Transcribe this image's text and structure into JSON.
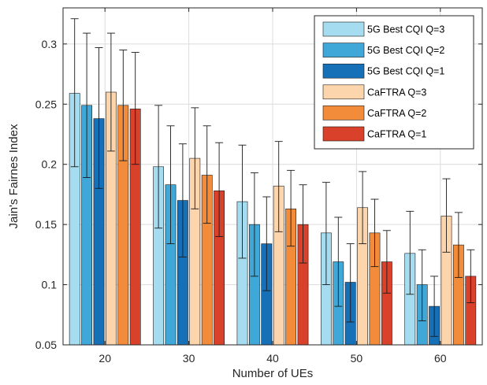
{
  "chart_data": {
    "type": "bar",
    "title": "",
    "xlabel": "Number of UEs",
    "ylabel": "Jain's Fairnes Index",
    "categories": [
      "20",
      "30",
      "40",
      "50",
      "60"
    ],
    "ylim": [
      0.05,
      0.33
    ],
    "yticks": [
      0.05,
      0.1,
      0.15,
      0.2,
      0.25,
      0.3
    ],
    "ytick_labels": [
      "0.05",
      "0.1",
      "0.15",
      "0.2",
      "0.25",
      "0.3"
    ],
    "grid": true,
    "legend_position": "top-right",
    "error_bars": true,
    "series": [
      {
        "name": "5G Best CQI Q=3",
        "color": "#a6dcef",
        "values": [
          0.259,
          0.198,
          0.169,
          0.143,
          0.126
        ],
        "err_low": [
          0.198,
          0.147,
          0.122,
          0.1,
          0.092
        ],
        "err_high": [
          0.321,
          0.249,
          0.216,
          0.185,
          0.161
        ]
      },
      {
        "name": "5G Best CQI Q=2",
        "color": "#3fa8d9",
        "values": [
          0.249,
          0.183,
          0.15,
          0.119,
          0.1
        ],
        "err_low": [
          0.189,
          0.134,
          0.107,
          0.082,
          0.07
        ],
        "err_high": [
          0.309,
          0.232,
          0.193,
          0.156,
          0.129
        ]
      },
      {
        "name": "5G Best CQI Q=1",
        "color": "#1670b8",
        "values": [
          0.238,
          0.17,
          0.134,
          0.102,
          0.082
        ],
        "err_low": [
          0.18,
          0.123,
          0.095,
          0.069,
          0.057
        ],
        "err_high": [
          0.297,
          0.217,
          0.173,
          0.134,
          0.107
        ]
      },
      {
        "name": "CaFTRA Q=3",
        "color": "#fdd5ad",
        "values": [
          0.26,
          0.205,
          0.182,
          0.164,
          0.157
        ],
        "err_low": [
          0.211,
          0.163,
          0.144,
          0.134,
          0.127
        ],
        "err_high": [
          0.309,
          0.247,
          0.219,
          0.194,
          0.188
        ]
      },
      {
        "name": "CaFTRA Q=2",
        "color": "#f28c3a",
        "values": [
          0.249,
          0.191,
          0.163,
          0.143,
          0.133
        ],
        "err_low": [
          0.203,
          0.151,
          0.132,
          0.115,
          0.106
        ],
        "err_high": [
          0.295,
          0.232,
          0.195,
          0.171,
          0.16
        ]
      },
      {
        "name": "CaFTRA Q=1",
        "color": "#d9412b",
        "values": [
          0.246,
          0.178,
          0.15,
          0.119,
          0.107
        ],
        "err_low": [
          0.2,
          0.14,
          0.118,
          0.093,
          0.085
        ],
        "err_high": [
          0.293,
          0.218,
          0.183,
          0.145,
          0.129
        ]
      }
    ]
  }
}
